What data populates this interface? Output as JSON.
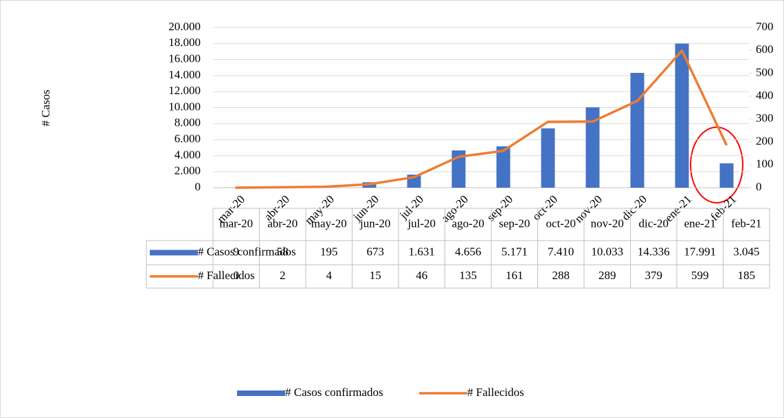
{
  "chart_data": {
    "type": "bar_line",
    "y_label": "# Casos",
    "categories": [
      "mar-20",
      "abr-20",
      "may-20",
      "jun-20",
      "jul-20",
      "ago-20",
      "sep-20",
      "oct-20",
      "nov-20",
      "dic-20",
      "ene-21",
      "feb-21"
    ],
    "series": [
      {
        "name": "# Casos confirmados",
        "color": "#4472c4",
        "type": "bar",
        "values": [
          9,
          58,
          195,
          673,
          1631,
          4656,
          5171,
          7410,
          10033,
          14336,
          17991,
          3045
        ],
        "value_labels": [
          "9",
          "58",
          "195",
          "673",
          "1.631",
          "4.656",
          "5.171",
          "7.410",
          "10.033",
          "14.336",
          "17.991",
          "3.045"
        ]
      },
      {
        "name": "# Fallecidos",
        "color": "#ed7d31",
        "type": "line",
        "axis": "y2",
        "values": [
          0,
          2,
          4,
          15,
          46,
          135,
          161,
          288,
          289,
          379,
          599,
          185
        ]
      }
    ],
    "ylim": [
      0,
      20000
    ],
    "yticks": [
      0,
      {
        "value": 2000,
        "label": "2.000"
      },
      {
        "value": 4000,
        "label": "4.000"
      },
      {
        "value": 6000,
        "label": "6.000"
      },
      {
        "value": 8000,
        "label": "8.000"
      },
      {
        "value": 10000,
        "label": "10.000"
      },
      {
        "value": 12000,
        "label": "12.000"
      },
      {
        "value": 14000,
        "label": "14.000"
      },
      {
        "value": 16000,
        "label": "16.000"
      },
      {
        "value": 18000,
        "label": "18.000"
      },
      {
        "value": 20000,
        "label": "20.000"
      }
    ],
    "y2lim": [
      0,
      700
    ],
    "y2ticks": [
      0,
      100,
      200,
      300,
      400,
      500,
      600,
      700
    ],
    "grid": true,
    "legend": "bottom",
    "data_table": true
  }
}
